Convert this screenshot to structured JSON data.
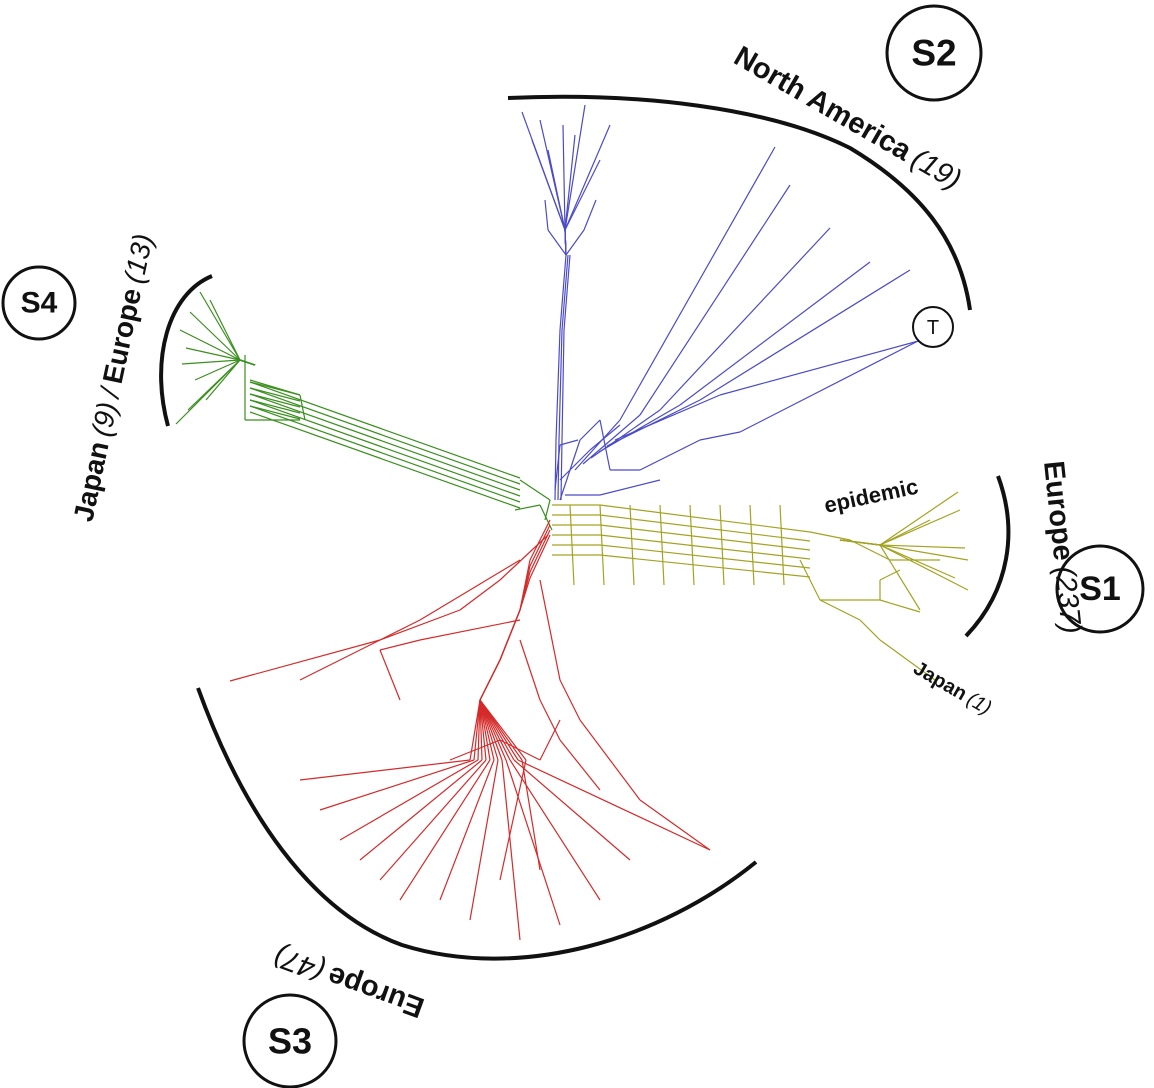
{
  "clusters": {
    "s1": {
      "id": "S1",
      "region": "Europe",
      "count": "(237)",
      "note": "epidemic",
      "sub_region": "Japan",
      "sub_count": "(1)",
      "color": "#a3a323"
    },
    "s2": {
      "id": "S2",
      "region": "North America",
      "count": "(19)",
      "marker": "T",
      "color": "#4b4bc8"
    },
    "s3": {
      "id": "S3",
      "region": "Europe",
      "count": "(47)",
      "color": "#d42a2a"
    },
    "s4": {
      "id": "S4",
      "region_a": "Japan",
      "count_a": "(9)",
      "separator": "/",
      "region_b": "Europe",
      "count_b": "(13)",
      "color": "#3a8f1e"
    }
  }
}
